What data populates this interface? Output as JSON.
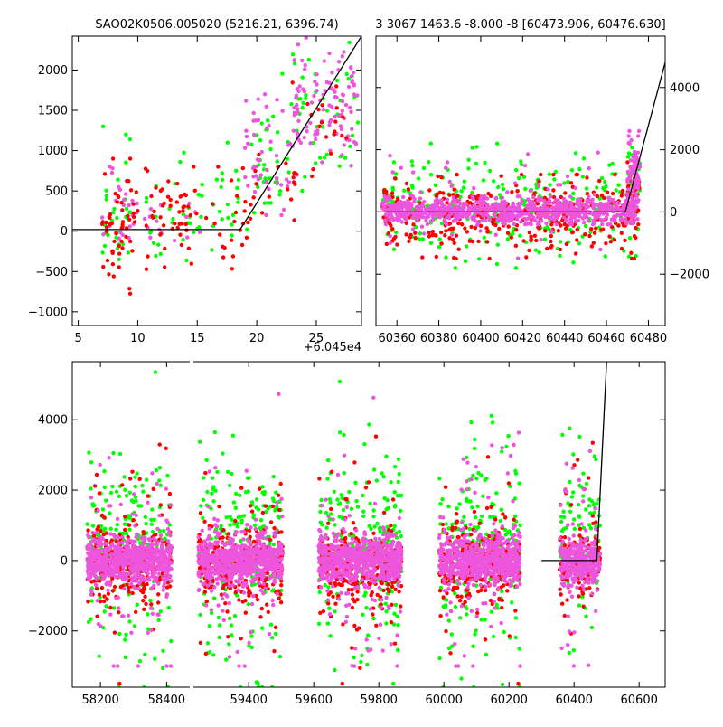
{
  "figure": {
    "background": "#ffffff",
    "colors": {
      "green": "#00ff00",
      "red": "#ff0000",
      "magenta": "#ee55dd",
      "model": "#000000"
    }
  },
  "chart_data": [
    {
      "id": "panel-top-left",
      "type": "scatter",
      "title": "SAO02K0506.005020 (5216.21, 6396.74)",
      "xlabel": "",
      "ylabel": "",
      "xlim": [
        4.5,
        28.8
      ],
      "ylim": [
        -1170,
        2420
      ],
      "xticks": [
        5,
        10,
        15,
        20,
        25
      ],
      "xtick_labels": [
        "5",
        "10",
        "15",
        "20",
        "25"
      ],
      "yticks": [
        -1000,
        -500,
        0,
        500,
        1000,
        1500,
        2000
      ],
      "ytick_labels": [
        "−1000",
        "−500",
        "0",
        "500",
        "1000",
        "1500",
        "2000"
      ],
      "offset_text": "+6.045e4",
      "model_line": {
        "x": [
          4.5,
          18.6,
          28.8
        ],
        "y": [
          20,
          20,
          2420
        ]
      },
      "series": [
        {
          "color": "green",
          "clusters": [
            {
              "x": [
                7.0,
                9.5
              ],
              "y": [
                -700,
                1300
              ],
              "n": 30
            },
            {
              "x": [
                10.5,
                15.5
              ],
              "y": [
                -700,
                1100
              ],
              "n": 30
            },
            {
              "x": [
                16,
                18.5
              ],
              "y": [
                -500,
                1100
              ],
              "n": 20
            },
            {
              "x": [
                19,
                22
              ],
              "y": [
                0,
                1600
              ],
              "n": 35
            },
            {
              "x": [
                22,
                28.5
              ],
              "y": [
                500,
                2400
              ],
              "n": 45
            }
          ]
        },
        {
          "color": "magenta",
          "clusters": [
            {
              "x": [
                7.0,
                10.0
              ],
              "y": [
                -300,
                800
              ],
              "n": 25
            },
            {
              "x": [
                10.5,
                15.5
              ],
              "y": [
                -300,
                500
              ],
              "n": 15
            },
            {
              "x": [
                19,
                23
              ],
              "y": [
                200,
                1700
              ],
              "n": 45
            },
            {
              "x": [
                23,
                28.5
              ],
              "y": [
                700,
                2400
              ],
              "n": 110
            }
          ]
        },
        {
          "color": "red",
          "clusters": [
            {
              "x": [
                7.0,
                10.0
              ],
              "y": [
                -800,
                900
              ],
              "n": 55
            },
            {
              "x": [
                10.5,
                15.0
              ],
              "y": [
                -700,
                800
              ],
              "n": 50
            },
            {
              "x": [
                15.5,
                19.5
              ],
              "y": [
                -600,
                800
              ],
              "n": 25
            },
            {
              "x": [
                19.5,
                23.5
              ],
              "y": [
                0,
                1200
              ],
              "n": 15
            },
            {
              "x": [
                23,
                28
              ],
              "y": [
                600,
                2000
              ],
              "n": 20
            }
          ]
        }
      ]
    },
    {
      "id": "panel-top-right",
      "type": "scatter",
      "title": "3 3067 1463.6 -8.000 -8 [60473.906, 60476.630]",
      "xlabel": "",
      "ylabel": "",
      "xlim": [
        60350,
        60488
      ],
      "ylim": [
        -3650,
        5650
      ],
      "xticks": [
        60360,
        60380,
        60400,
        60420,
        60440,
        60460,
        60480
      ],
      "xtick_labels": [
        "60360",
        "60380",
        "60400",
        "60420",
        "60440",
        "60460",
        "60480"
      ],
      "yticks": [
        -2000,
        0,
        2000,
        4000
      ],
      "ytick_labels": [
        "−2000",
        "0",
        "2000",
        "4000"
      ],
      "yaxis_side": "right",
      "model_line": {
        "x": [
          60350,
          60469,
          60488
        ],
        "y": [
          0,
          0,
          4800
        ]
      },
      "series": [
        {
          "color": "green",
          "clusters": [
            {
              "x": [
                60353,
                60475
              ],
              "y": [
                -1800,
                2200
              ],
              "n": 260
            },
            {
              "x": [
                60470,
                60476
              ],
              "y": [
                0,
                2400
              ],
              "n": 20
            }
          ]
        },
        {
          "color": "red",
          "clusters": [
            {
              "x": [
                60353,
                60475
              ],
              "y": [
                -1500,
                1200
              ],
              "n": 380
            },
            {
              "x": [
                60470,
                60476
              ],
              "y": [
                -400,
                1600
              ],
              "n": 25
            }
          ]
        },
        {
          "color": "magenta",
          "clusters": [
            {
              "x": [
                60353,
                60475
              ],
              "y": [
                -400,
                500
              ],
              "n": 850
            },
            {
              "x": [
                60353,
                60475
              ],
              "y": [
                -1500,
                2200
              ],
              "n": 60
            },
            {
              "x": [
                60470,
                60476
              ],
              "y": [
                0,
                2600
              ],
              "n": 70
            }
          ]
        }
      ]
    },
    {
      "id": "panel-bottom",
      "type": "scatter",
      "title": "",
      "xlabel": "",
      "ylabel": "",
      "ylim": [
        -3600,
        5650
      ],
      "yticks": [
        -2000,
        0,
        2000,
        4000
      ],
      "ytick_labels": [
        "−2000",
        "0",
        "2000",
        "4000"
      ],
      "segments": [
        {
          "xlim": [
            58115,
            58470
          ],
          "xticks": [
            58200,
            58400
          ],
          "xtick_labels": [
            "58200",
            "58400"
          ]
        },
        {
          "xlim": [
            59230,
            60680
          ],
          "xticks": [
            59400,
            59600,
            59800,
            60000,
            60200,
            60400,
            60600
          ],
          "xtick_labels": [
            "59400",
            "59600",
            "59800",
            "60000",
            "60200",
            "60400",
            "60600"
          ]
        }
      ],
      "model_line": {
        "x": [
          60300,
          60470,
          60500
        ],
        "y": [
          0,
          0,
          5650
        ]
      },
      "seasons": [
        {
          "x": [
            58160,
            58415
          ]
        },
        {
          "x": [
            59245,
            59505
          ]
        },
        {
          "x": [
            59615,
            59870
          ]
        },
        {
          "x": [
            59985,
            60235
          ]
        },
        {
          "x": [
            60355,
            60480
          ]
        }
      ],
      "series": [
        {
          "color": "green",
          "spread": [
            -3600,
            5650
          ],
          "per_season": 220
        },
        {
          "color": "red",
          "spread": [
            -3500,
            4500
          ],
          "per_season": 280
        },
        {
          "color": "magenta",
          "spread": [
            -3000,
            5650
          ],
          "per_season": 700
        }
      ]
    }
  ]
}
